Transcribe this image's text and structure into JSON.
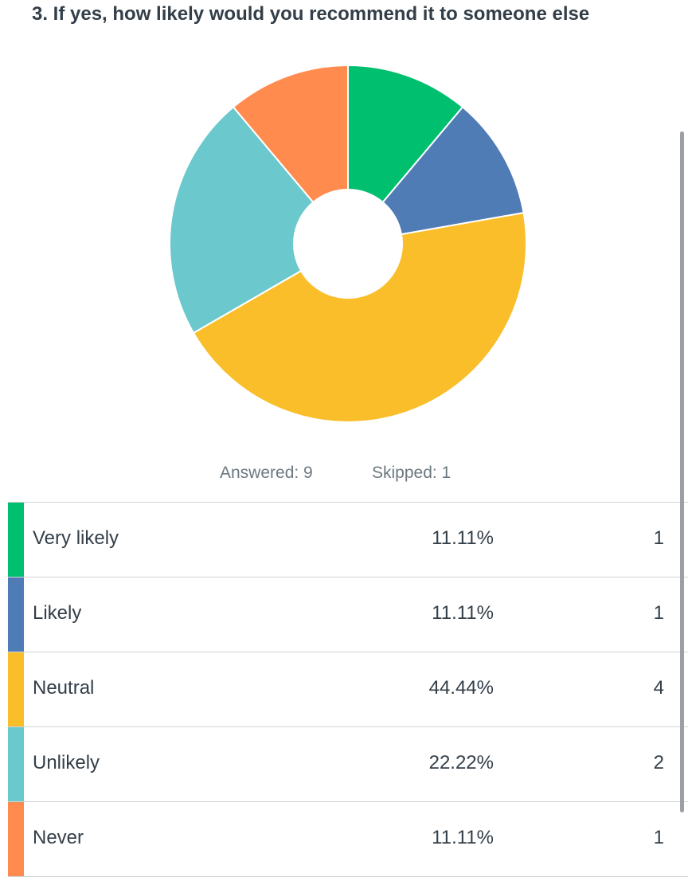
{
  "question": {
    "title": "3. If yes, how likely would you recommend it to someone else"
  },
  "stats": {
    "answered": "Answered: 9",
    "skipped": "Skipped: 1"
  },
  "rows": [
    {
      "label": "Very likely",
      "percent": "11.11%",
      "count": "1"
    },
    {
      "label": "Likely",
      "percent": "11.11%",
      "count": "1"
    },
    {
      "label": "Neutral",
      "percent": "44.44%",
      "count": "4"
    },
    {
      "label": "Unlikely",
      "percent": "22.22%",
      "count": "2"
    },
    {
      "label": "Never",
      "percent": "11.11%",
      "count": "1"
    }
  ],
  "chart_data": {
    "type": "pie",
    "style": "donut",
    "categories": [
      "Very likely",
      "Likely",
      "Neutral",
      "Unlikely",
      "Never"
    ],
    "values": [
      1,
      1,
      4,
      2,
      1
    ],
    "percentages": [
      11.11,
      11.11,
      44.44,
      22.22,
      11.11
    ],
    "colors": [
      "#00bf6f",
      "#507cb6",
      "#f9be2a",
      "#6bc8cd",
      "#ff8b4f"
    ],
    "start_angle_deg": 0,
    "direction": "clockwise"
  }
}
